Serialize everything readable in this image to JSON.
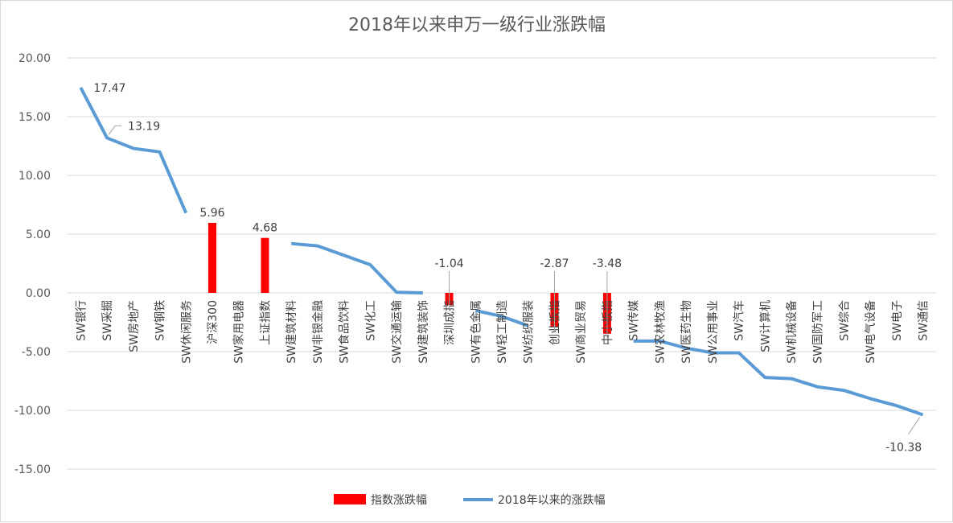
{
  "chart_data": {
    "type": "bar",
    "title": "2018年以来申万一级行业涨跌幅",
    "xlabel": "",
    "ylabel": "",
    "ylim": [
      -15,
      20
    ],
    "yticks": [
      -15,
      -10,
      -5,
      0,
      5,
      10,
      15,
      20
    ],
    "ytick_labels": [
      "-15.00",
      "-10.00",
      "-5.00",
      "0.00",
      "5.00",
      "10.00",
      "15.00",
      "20.00"
    ],
    "grid": true,
    "legend_position": "bottom",
    "categories": [
      "SW银行",
      "SW采掘",
      "SW房地产",
      "SW钢铁",
      "SW休闲服务",
      "沪深300",
      "SW家用电器",
      "上证指数",
      "SW建筑材料",
      "SW非银金融",
      "SW食品饮料",
      "SW化工",
      "SW交通运输",
      "SW建筑装饰",
      "深圳成指",
      "SW有色金属",
      "SW轻工制造",
      "SW纺织服装",
      "创业板指",
      "SW商业贸易",
      "中小板指",
      "SW传媒",
      "SW农林牧渔",
      "SW医药生物",
      "SW公用事业",
      "SW汽车",
      "SW计算机",
      "SW机械设备",
      "SW国防军工",
      "SW综合",
      "SW电气设备",
      "SW电子",
      "SW通信"
    ],
    "series": [
      {
        "name": "指数涨跌幅",
        "kind": "bar",
        "color": "#ff0000",
        "values": [
          null,
          null,
          null,
          null,
          null,
          5.96,
          null,
          4.68,
          null,
          null,
          null,
          null,
          null,
          null,
          -1.04,
          null,
          null,
          null,
          -2.87,
          null,
          -3.48,
          null,
          null,
          null,
          null,
          null,
          null,
          null,
          null,
          null,
          null,
          null,
          null
        ]
      },
      {
        "name": "2018年以来的涨跌幅",
        "kind": "line",
        "color": "#5b9bd5",
        "values": [
          17.47,
          13.19,
          12.3,
          12.0,
          6.8,
          null,
          null,
          null,
          4.2,
          4.0,
          3.2,
          2.4,
          0.05,
          0.0,
          null,
          -1.5,
          -2.0,
          -2.8,
          null,
          null,
          null,
          -4.1,
          -4.1,
          -4.7,
          -5.1,
          -5.1,
          -7.2,
          -7.3,
          -8.0,
          -8.3,
          -9.0,
          -9.6,
          -10.38
        ]
      }
    ],
    "data_labels": [
      {
        "index": 0,
        "series": 1,
        "text": "17.47"
      },
      {
        "index": 1,
        "series": 1,
        "text": "13.19"
      },
      {
        "index": 5,
        "series": 0,
        "text": "5.96"
      },
      {
        "index": 7,
        "series": 0,
        "text": "4.68"
      },
      {
        "index": 14,
        "series": 0,
        "text": "-1.04"
      },
      {
        "index": 18,
        "series": 0,
        "text": "-2.87"
      },
      {
        "index": 20,
        "series": 0,
        "text": "-3.48"
      },
      {
        "index": 32,
        "series": 1,
        "text": "-10.38"
      }
    ]
  }
}
